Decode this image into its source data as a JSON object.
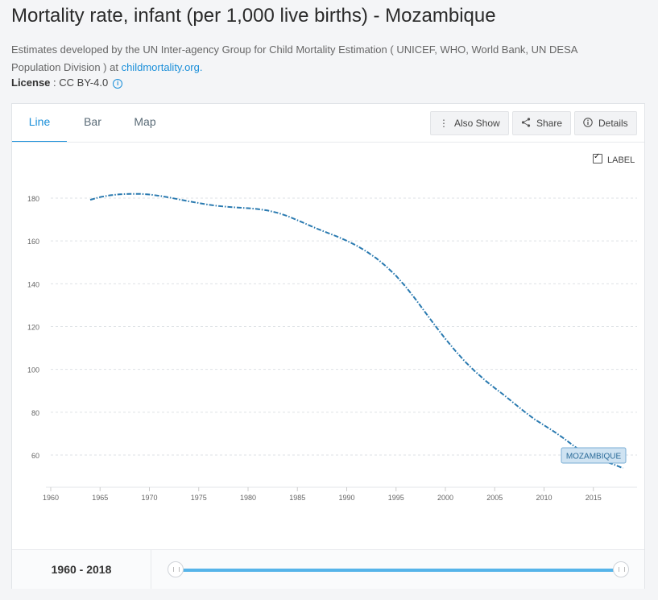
{
  "page": {
    "title": "Mortality rate, infant (per 1,000 live births) - Mozambique",
    "description": "Estimates developed by the UN Inter-agency Group for Child Mortality Estimation ( UNICEF, WHO, World Bank, UN DESA Population Division ) at ",
    "source_link": "childmortality.org.",
    "license_label": "License",
    "license_value": " : CC BY-4.0",
    "info_icon": "info-icon"
  },
  "tabs": [
    {
      "label": "Line",
      "active": true
    },
    {
      "label": "Bar",
      "active": false
    },
    {
      "label": "Map",
      "active": false
    }
  ],
  "toolbar": {
    "also_show": "Also Show",
    "share": "Share",
    "details": "Details"
  },
  "label_toggle": {
    "text": "LABEL",
    "checked": true
  },
  "range": {
    "text": "1960 - 2018",
    "start": 1960,
    "end": 2018
  },
  "chart_data": {
    "type": "line",
    "title": "",
    "xlabel": "",
    "ylabel": "",
    "xlim": [
      1960,
      2018
    ],
    "ylim": [
      50,
      190
    ],
    "x_ticks": [
      1960,
      1965,
      1970,
      1975,
      1980,
      1985,
      1990,
      1995,
      2000,
      2005,
      2010,
      2015
    ],
    "y_ticks": [
      60,
      80,
      100,
      120,
      140,
      160,
      180
    ],
    "grid": "horizontal dashed",
    "series": [
      {
        "name": "MOZAMBIQUE",
        "color": "#2a7ab0",
        "x": [
          1964,
          1965,
          1966,
          1967,
          1968,
          1969,
          1970,
          1971,
          1972,
          1973,
          1974,
          1975,
          1976,
          1977,
          1978,
          1979,
          1980,
          1981,
          1982,
          1983,
          1984,
          1985,
          1986,
          1987,
          1988,
          1989,
          1990,
          1991,
          1992,
          1993,
          1994,
          1995,
          1996,
          1997,
          1998,
          1999,
          2000,
          2001,
          2002,
          2003,
          2004,
          2005,
          2006,
          2007,
          2008,
          2009,
          2010,
          2011,
          2012,
          2013,
          2014,
          2015,
          2016,
          2017,
          2018
        ],
        "values": [
          179.2,
          180.5,
          181.3,
          181.8,
          182.0,
          182.0,
          181.7,
          181.1,
          180.3,
          179.4,
          178.5,
          177.7,
          176.9,
          176.3,
          175.9,
          175.6,
          175.3,
          174.9,
          174.2,
          173.1,
          171.6,
          169.7,
          167.7,
          165.7,
          163.9,
          162.1,
          160.1,
          157.8,
          155.1,
          151.9,
          148.1,
          143.7,
          138.5,
          132.6,
          126.4,
          120.2,
          114.3,
          108.7,
          103.6,
          99.1,
          95.0,
          91.3,
          87.8,
          84.0,
          80.3,
          76.8,
          73.9,
          71.0,
          67.8,
          64.3,
          61.2,
          58.9,
          57.3,
          55.7,
          53.9
        ]
      }
    ],
    "end_label": "MOZAMBIQUE"
  }
}
